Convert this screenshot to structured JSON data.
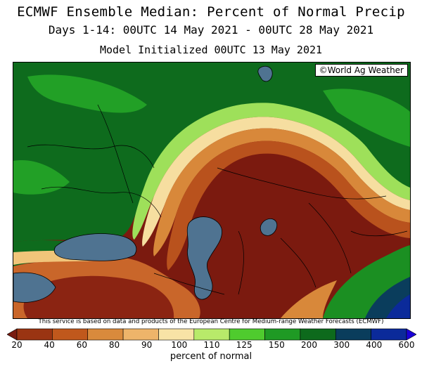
{
  "title": {
    "line1": "ECMWF Ensemble Median: Percent of Normal Precip",
    "line2": "Days 1-14: 00UTC 14 May 2021 - 00UTC 28 May 2021",
    "line3": "Model Initialized 00UTC 13 May 2021"
  },
  "watermark": "©World Ag Weather",
  "disclaimer": "This service is based on data and products of the European Centre for Medium-range Weather Forecasts (ECMWF)",
  "legend": {
    "units_label": "percent of normal",
    "tick_labels": [
      "20",
      "40",
      "60",
      "80",
      "90",
      "100",
      "110",
      "125",
      "150",
      "200",
      "300",
      "400",
      "600"
    ],
    "colors": [
      "#7a1c10",
      "#9a3412",
      "#c0581c",
      "#d98a3c",
      "#eeb46a",
      "#f8e3a6",
      "#b8ea6a",
      "#4fcb2e",
      "#1f9a24",
      "#0d6a1c",
      "#0a3d5c",
      "#0b2a9a",
      "#1a00d8"
    ]
  }
}
